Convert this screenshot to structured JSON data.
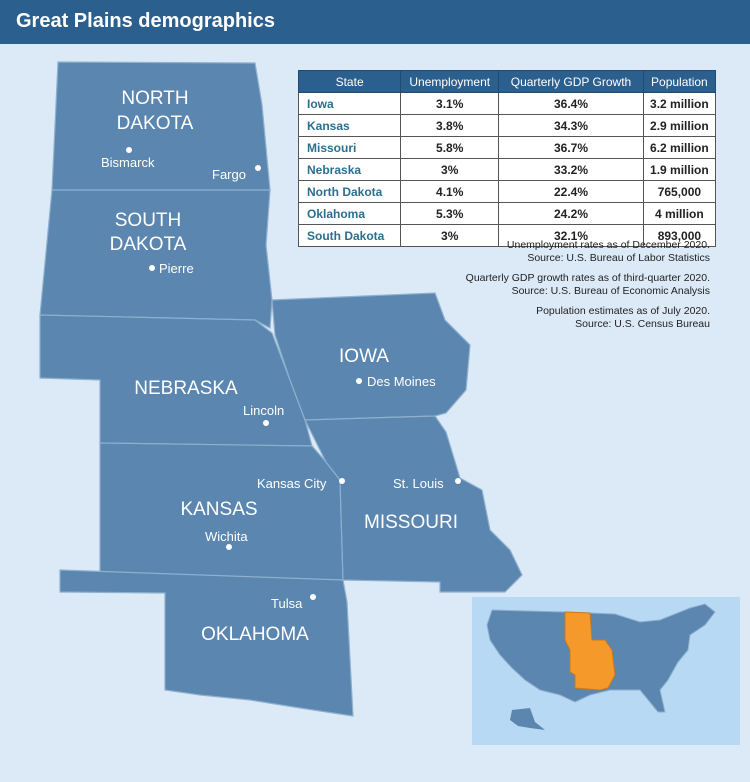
{
  "header": {
    "title": "Great Plains demographics"
  },
  "table": {
    "columns": [
      "State",
      "Unemployment",
      "Quarterly GDP Growth",
      "Population"
    ],
    "rows": [
      [
        "Iowa",
        "3.1%",
        "36.4%",
        "3.2 million"
      ],
      [
        "Kansas",
        "3.8%",
        "34.3%",
        "2.9 million"
      ],
      [
        "Missouri",
        "5.8%",
        "36.7%",
        "6.2 million"
      ],
      [
        "Nebraska",
        "3%",
        "33.2%",
        "1.9 million"
      ],
      [
        "North Dakota",
        "4.1%",
        "22.4%",
        "765,000"
      ],
      [
        "Oklahoma",
        "5.3%",
        "24.2%",
        "4 million"
      ],
      [
        "South Dakota",
        "3%",
        "32.1%",
        "893,000"
      ]
    ]
  },
  "notes": [
    [
      "Unemployment rates as of December 2020.",
      "Source: U.S. Bureau of Labor Statistics"
    ],
    [
      "Quarterly GDP growth rates as of third-quarter 2020.",
      "Source: U.S. Bureau of Economic Analysis"
    ],
    [
      "Population estimates as of July 2020.",
      "Source: U.S. Census Bureau"
    ]
  ],
  "map": {
    "states": [
      [
        "NORTH",
        "DAKOTA"
      ],
      [
        "SOUTH",
        "DAKOTA"
      ],
      [
        "NEBRASKA"
      ],
      [
        "IOWA"
      ],
      [
        "KANSAS"
      ],
      [
        "MISSOURI"
      ],
      [
        "OKLAHOMA"
      ]
    ],
    "cities": [
      "Bismarck",
      "Fargo",
      "Pierre",
      "Lincoln",
      "Des Moines",
      "Kansas City",
      "St. Louis",
      "Wichita",
      "Tulsa"
    ]
  }
}
